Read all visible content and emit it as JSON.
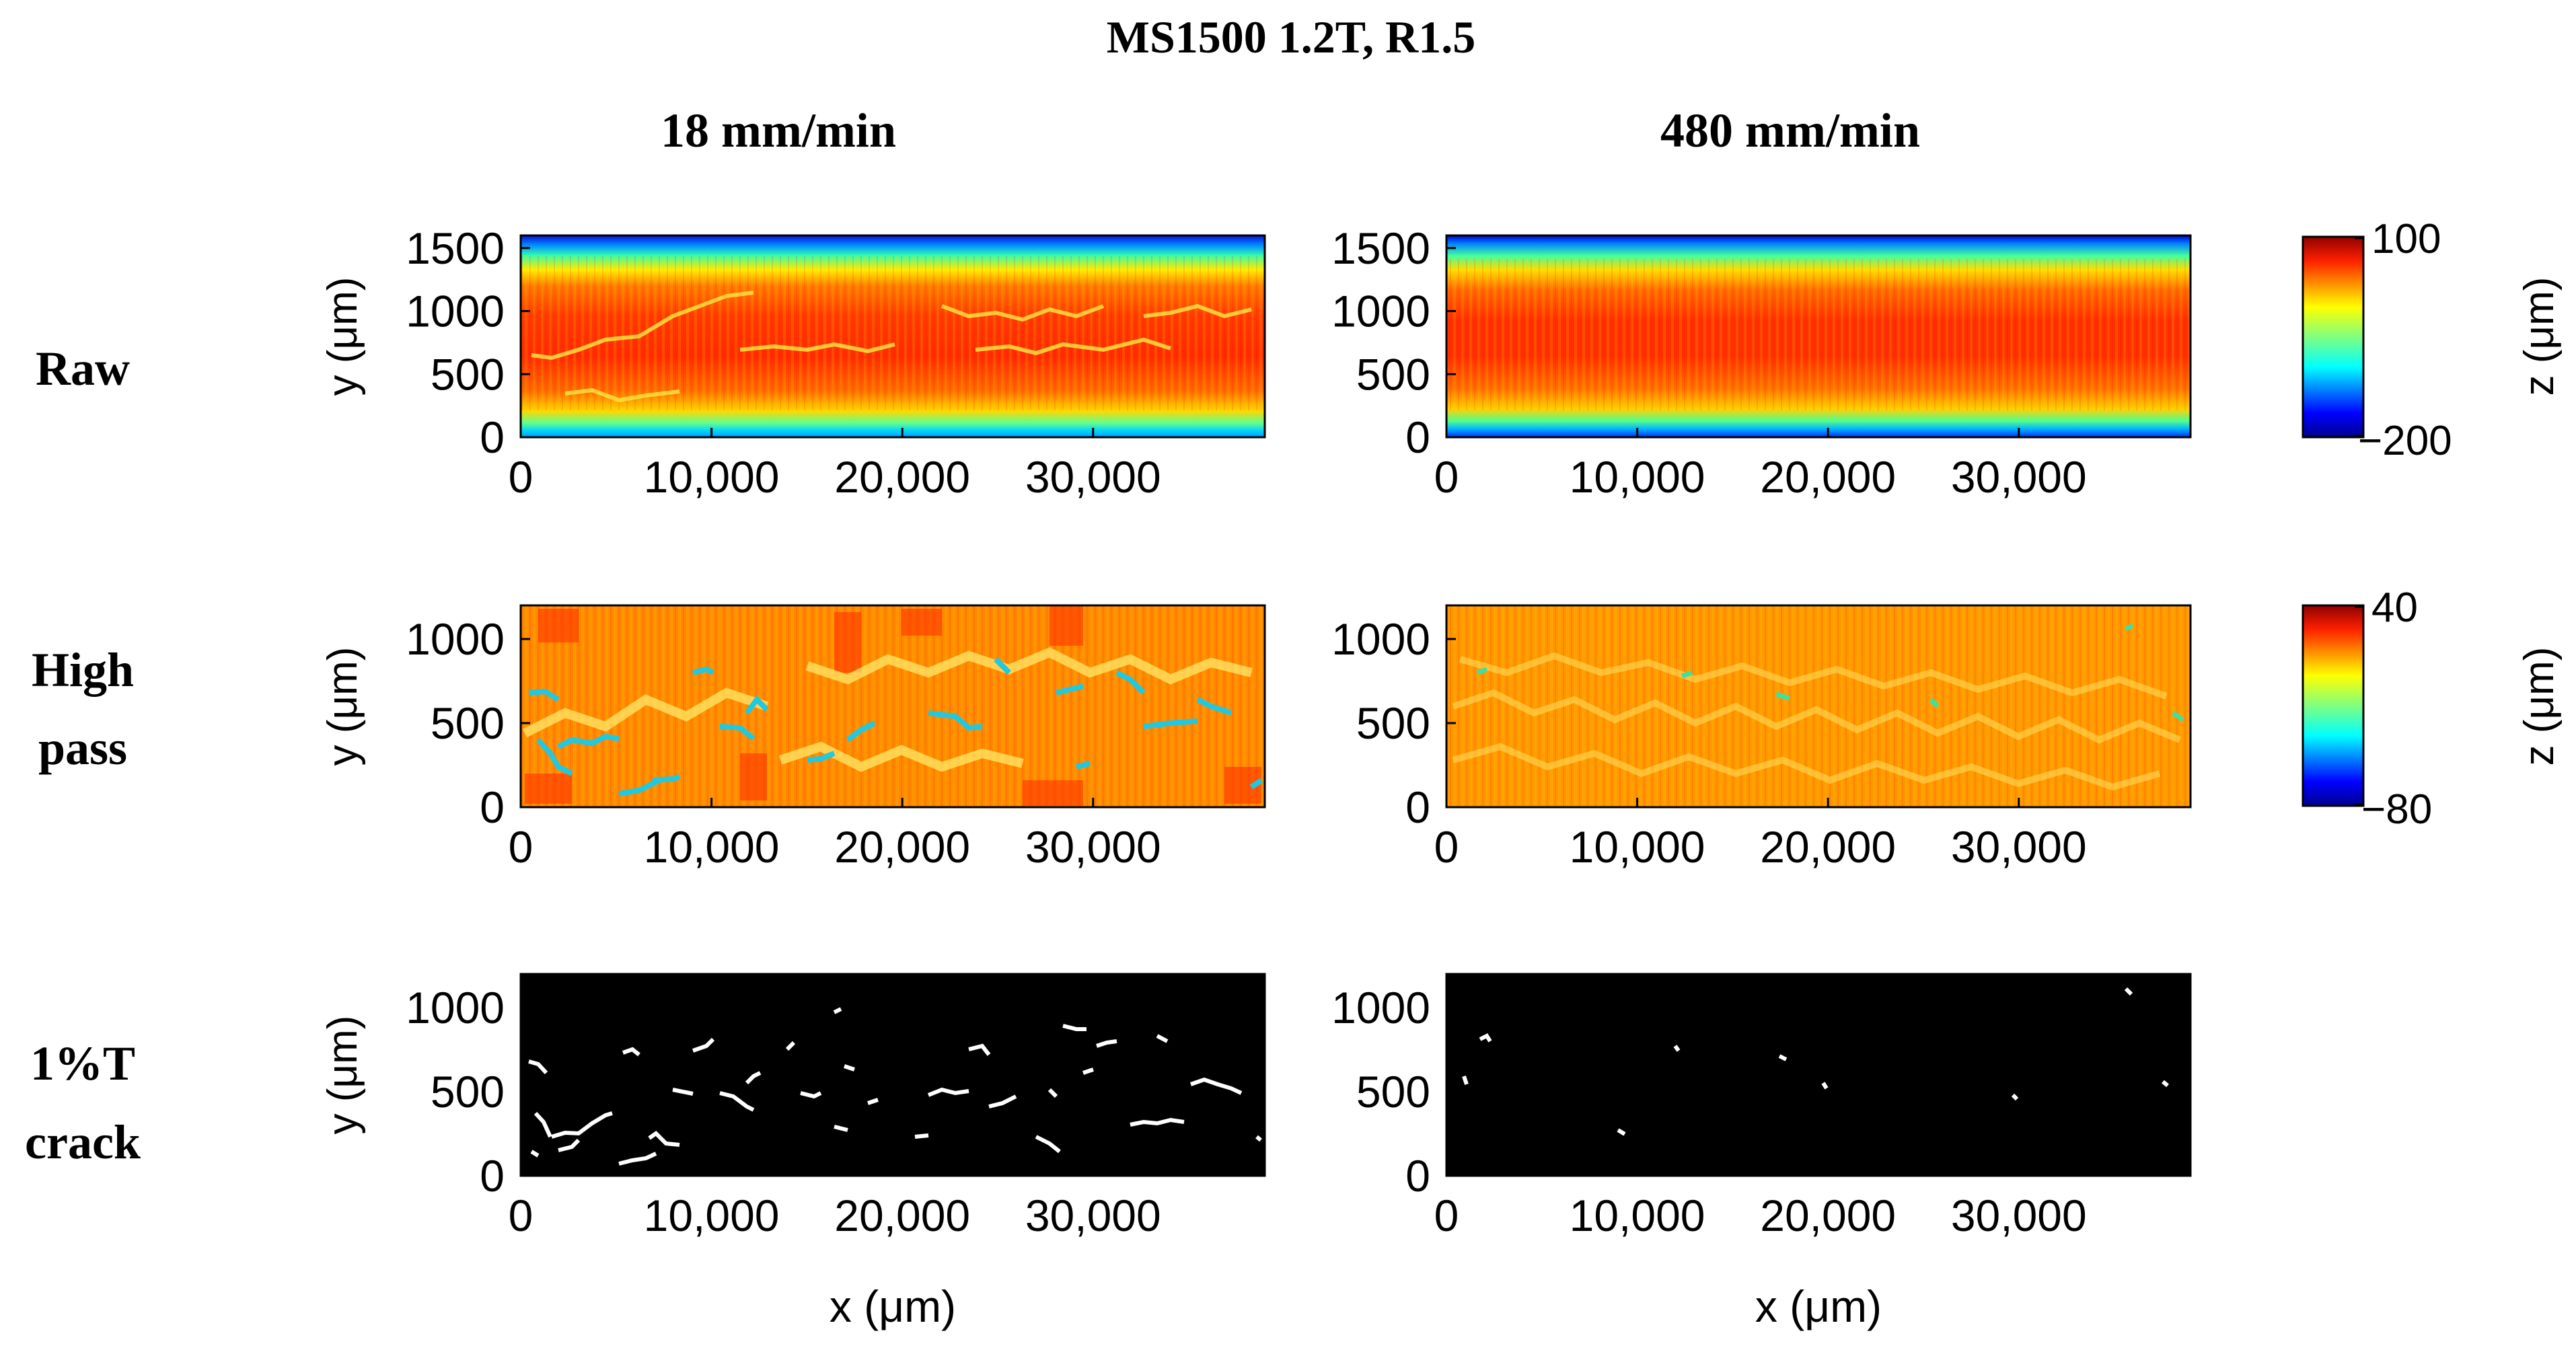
{
  "figure_title": "MS1500 1.2T, R1.5",
  "columns": [
    "18 mm/min",
    "480 mm/min"
  ],
  "rows": [
    {
      "label_lines": [
        "Raw"
      ]
    },
    {
      "label_lines": [
        "High",
        "pass"
      ]
    },
    {
      "label_lines": [
        "1%T",
        "crack"
      ]
    }
  ],
  "x_axis_label": "x (μm)",
  "y_axis_label": "y (μm)",
  "colorbars": [
    {
      "label": "z (μm)",
      "max_label": "100",
      "min_label": "−200",
      "min": -200,
      "max": 100
    },
    {
      "label": "z (μm)",
      "max_label": "40",
      "min_label": "−80",
      "min": -80,
      "max": 40
    }
  ],
  "colors": {
    "colormap": [
      "#00008f",
      "#0000ff",
      "#0080ff",
      "#00e0ff",
      "#40ff80",
      "#c0ff00",
      "#ffff00",
      "#ffc000",
      "#ff8000",
      "#ff2000",
      "#c00000"
    ],
    "crack_background": "#000000",
    "crack_marks": "#ffffff"
  },
  "chart_data": [
    {
      "type": "heatmap",
      "id": "raw-18",
      "row": "Raw",
      "column": "18 mm/min",
      "xlim": [
        0,
        39000
      ],
      "ylim": [
        0,
        1600
      ],
      "xticks": [
        0,
        10000,
        20000,
        30000
      ],
      "xtick_labels": [
        "0",
        "10,000",
        "20,000",
        "30,000"
      ],
      "yticks": [
        0,
        500,
        1000,
        1500
      ],
      "ytick_labels": [
        "0",
        "500",
        "1000",
        "1500"
      ],
      "zlim": [
        -200,
        100
      ]
    },
    {
      "type": "heatmap",
      "id": "raw-480",
      "row": "Raw",
      "column": "480 mm/min",
      "xlim": [
        0,
        39000
      ],
      "ylim": [
        0,
        1600
      ],
      "xticks": [
        0,
        10000,
        20000,
        30000
      ],
      "xtick_labels": [
        "0",
        "10,000",
        "20,000",
        "30,000"
      ],
      "yticks": [
        0,
        500,
        1000,
        1500
      ],
      "ytick_labels": [
        "0",
        "500",
        "1000",
        "1500"
      ],
      "zlim": [
        -200,
        100
      ]
    },
    {
      "type": "heatmap",
      "id": "hp-18",
      "row": "High pass",
      "column": "18 mm/min",
      "xlim": [
        0,
        39000
      ],
      "ylim": [
        0,
        1200
      ],
      "xticks": [
        0,
        10000,
        20000,
        30000
      ],
      "xtick_labels": [
        "0",
        "10,000",
        "20,000",
        "30,000"
      ],
      "yticks": [
        0,
        500,
        1000
      ],
      "ytick_labels": [
        "0",
        "500",
        "1000"
      ],
      "zlim": [
        -80,
        40
      ]
    },
    {
      "type": "heatmap",
      "id": "hp-480",
      "row": "High pass",
      "column": "480 mm/min",
      "xlim": [
        0,
        39000
      ],
      "ylim": [
        0,
        1200
      ],
      "xticks": [
        0,
        10000,
        20000,
        30000
      ],
      "xtick_labels": [
        "0",
        "10,000",
        "20,000",
        "30,000"
      ],
      "yticks": [
        0,
        500,
        1000
      ],
      "ytick_labels": [
        "0",
        "500",
        "1000"
      ],
      "zlim": [
        -80,
        40
      ]
    },
    {
      "type": "heatmap",
      "id": "crack-18",
      "row": "1%T crack",
      "column": "18 mm/min",
      "binary": true,
      "xlim": [
        0,
        39000
      ],
      "ylim": [
        0,
        1200
      ],
      "xticks": [
        0,
        10000,
        20000,
        30000
      ],
      "xtick_labels": [
        "0",
        "10,000",
        "20,000",
        "30,000"
      ],
      "yticks": [
        0,
        500,
        1000
      ],
      "ytick_labels": [
        "0",
        "500",
        "1000"
      ],
      "xlabel": "x (μm)"
    },
    {
      "type": "heatmap",
      "id": "crack-480",
      "row": "1%T crack",
      "column": "480 mm/min",
      "binary": true,
      "xlim": [
        0,
        39000
      ],
      "ylim": [
        0,
        1200
      ],
      "xticks": [
        0,
        10000,
        20000,
        30000
      ],
      "xtick_labels": [
        "0",
        "10,000",
        "20,000",
        "30,000"
      ],
      "yticks": [
        0,
        500,
        1000
      ],
      "ytick_labels": [
        "0",
        "500",
        "1000"
      ],
      "xlabel": "x (μm)"
    }
  ]
}
